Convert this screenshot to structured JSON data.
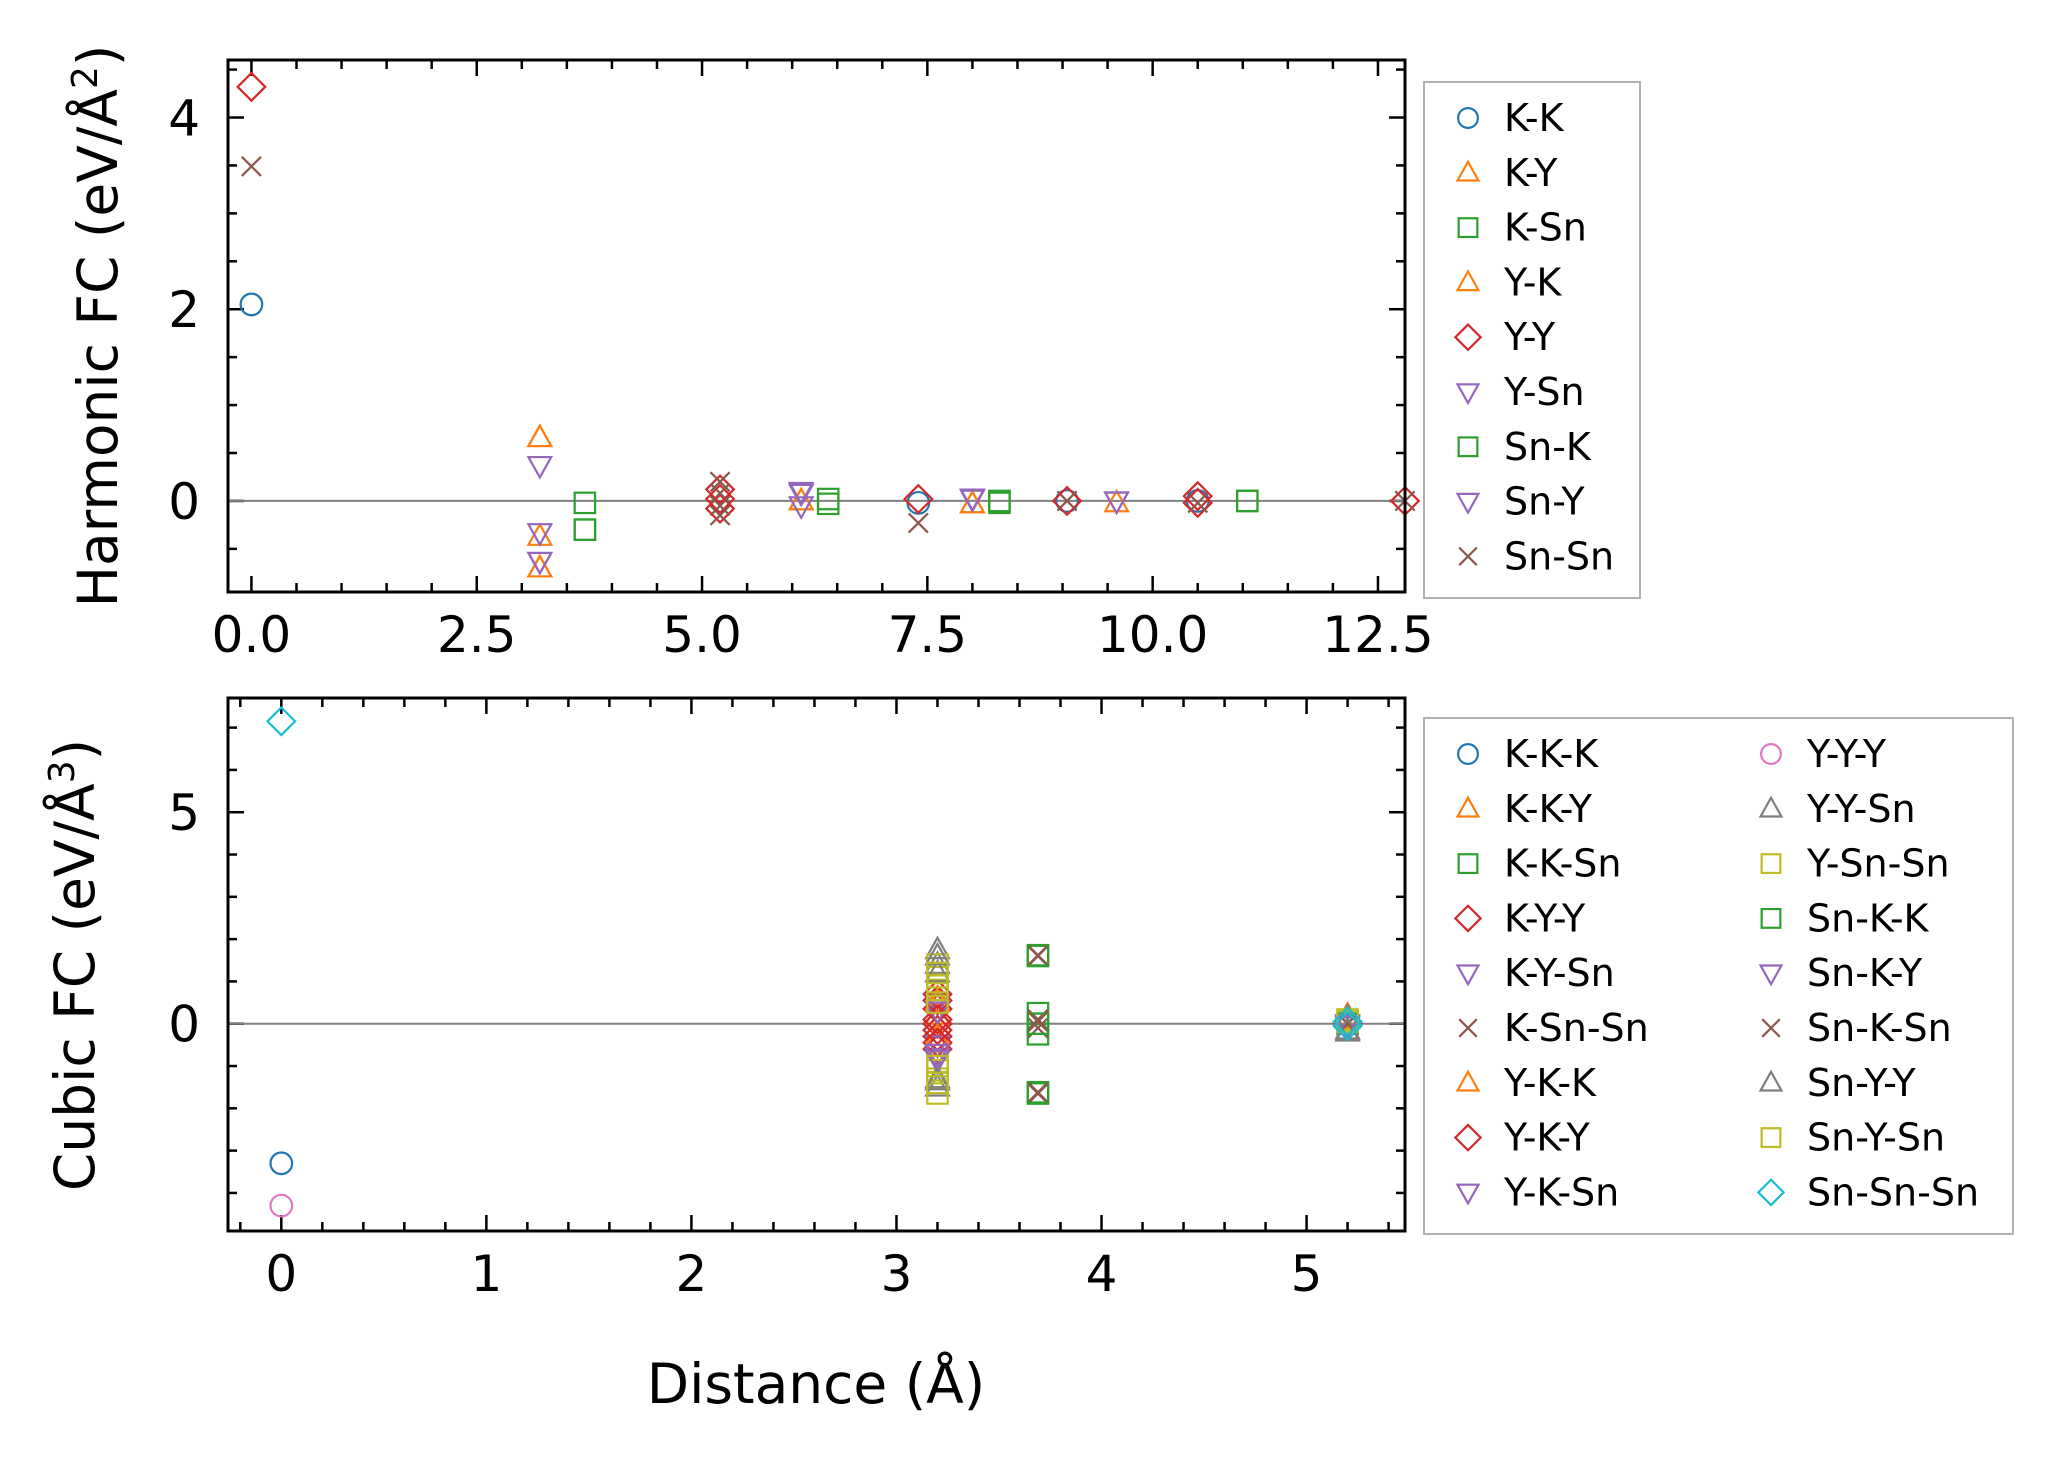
{
  "chart_data": [
    {
      "type": "scatter",
      "title": "",
      "xlabel": "",
      "ylabel": "Harmonic FC (eV/Å²)",
      "ylabel_parts": {
        "main": "Harmonic FC (eV/Å",
        "sup": "2",
        "close": ")"
      },
      "xlim": [
        -0.26,
        12.8
      ],
      "ylim": [
        -0.95,
        4.6
      ],
      "xticks": [
        0.0,
        2.5,
        5.0,
        7.5,
        10.0,
        12.5
      ],
      "xtick_labels": [
        "0.0",
        "2.5",
        "5.0",
        "7.5",
        "10.0",
        "12.5"
      ],
      "yticks": [
        0,
        2,
        4
      ],
      "ytick_labels": [
        "0",
        "2",
        "4"
      ],
      "legend_position": "right",
      "series": [
        {
          "name": "K-K",
          "marker": "circle",
          "color": "#1f77b4",
          "x": [
            0.0,
            7.4,
            9.05,
            10.5
          ],
          "y": [
            2.05,
            -0.02,
            0.0,
            0.0
          ]
        },
        {
          "name": "K-Y",
          "marker": "triangle-up",
          "color": "#ff7f0e",
          "x": [
            3.2,
            3.2,
            3.2,
            6.1,
            8.0,
            9.6
          ],
          "y": [
            0.66,
            -0.37,
            -0.7,
            0.0,
            -0.03,
            -0.02
          ]
        },
        {
          "name": "K-Sn",
          "marker": "square",
          "color": "#2ca02c",
          "x": [
            3.7,
            3.7,
            6.4,
            8.3,
            11.05
          ],
          "y": [
            -0.02,
            -0.3,
            0.02,
            0.0,
            0.0
          ]
        },
        {
          "name": "Y-K",
          "marker": "triangle-up",
          "color": "#ff7f0e",
          "x": [
            3.2,
            3.2,
            6.1,
            8.0
          ],
          "y": [
            0.66,
            -0.7,
            0.0,
            -0.03
          ]
        },
        {
          "name": "Y-Y",
          "marker": "diamond",
          "color": "#d62728",
          "x": [
            0.0,
            5.2,
            5.2,
            5.2,
            7.4,
            9.05,
            10.5,
            10.5,
            12.8
          ],
          "y": [
            4.32,
            0.12,
            0.02,
            -0.08,
            0.02,
            0.0,
            0.05,
            -0.02,
            0.0
          ]
        },
        {
          "name": "Y-Sn",
          "marker": "triangle-down",
          "color": "#9467bd",
          "x": [
            3.2,
            3.2,
            3.2,
            6.1,
            6.1,
            8.0,
            9.6
          ],
          "y": [
            0.37,
            -0.33,
            -0.63,
            0.1,
            -0.05,
            0.03,
            0.0
          ]
        },
        {
          "name": "Sn-K",
          "marker": "square",
          "color": "#2ca02c",
          "x": [
            3.7,
            6.4,
            8.3,
            11.05
          ],
          "y": [
            -0.3,
            -0.03,
            -0.02,
            0.0
          ]
        },
        {
          "name": "Sn-Y",
          "marker": "triangle-down",
          "color": "#9467bd",
          "x": [
            3.2,
            6.1,
            8.0,
            9.6
          ],
          "y": [
            -0.63,
            0.08,
            0.02,
            0.0
          ]
        },
        {
          "name": "Sn-Sn",
          "marker": "x",
          "color": "#8c564b",
          "x": [
            0.0,
            5.2,
            5.2,
            5.2,
            5.2,
            7.4,
            9.05,
            10.5,
            12.8
          ],
          "y": [
            3.49,
            0.2,
            0.08,
            -0.05,
            -0.15,
            -0.23,
            0.0,
            -0.02,
            0.0
          ]
        }
      ]
    },
    {
      "type": "scatter",
      "title": "",
      "xlabel": "Distance (Å)",
      "ylabel": "Cubic FC (eV/Å³)",
      "ylabel_parts": {
        "main": "Cubic FC (eV/Å",
        "sup": "3",
        "close": ")"
      },
      "xlim": [
        -0.26,
        5.48
      ],
      "ylim": [
        -4.9,
        7.7
      ],
      "xticks": [
        0,
        1,
        2,
        3,
        4,
        5
      ],
      "xtick_labels": [
        "0",
        "1",
        "2",
        "3",
        "4",
        "5"
      ],
      "yticks": [
        0,
        5
      ],
      "ytick_labels": [
        "0",
        "5"
      ],
      "legend_position": "right",
      "legend_columns": 2,
      "series": [
        {
          "name": "K-K-K",
          "marker": "circle",
          "color": "#1f77b4",
          "x": [
            0.0,
            5.2
          ],
          "y": [
            -3.3,
            0.0
          ]
        },
        {
          "name": "K-K-Y",
          "marker": "triangle-up",
          "color": "#ff7f0e",
          "x": [
            3.2,
            3.2,
            3.2,
            5.2
          ],
          "y": [
            0.6,
            0.2,
            -0.4,
            0.2
          ]
        },
        {
          "name": "K-K-Sn",
          "marker": "square",
          "color": "#2ca02c",
          "x": [
            3.69,
            3.69,
            3.69,
            3.69,
            3.69,
            5.2
          ],
          "y": [
            1.6,
            0.25,
            0.0,
            -0.25,
            -1.65,
            0.0
          ]
        },
        {
          "name": "K-Y-Y",
          "marker": "diamond",
          "color": "#d62728",
          "x": [
            3.2,
            3.2,
            3.2,
            3.2,
            3.2,
            5.2
          ],
          "y": [
            0.7,
            0.35,
            0.0,
            -0.3,
            -0.6,
            0.0
          ]
        },
        {
          "name": "K-Y-Sn",
          "marker": "triangle-down",
          "color": "#9467bd",
          "x": [
            3.2,
            3.2,
            3.2,
            5.2
          ],
          "y": [
            0.5,
            -0.5,
            -0.8,
            0.0
          ]
        },
        {
          "name": "K-Sn-Sn",
          "marker": "x",
          "color": "#8c564b",
          "x": [
            3.69,
            3.69,
            3.69,
            3.69,
            5.2
          ],
          "y": [
            1.6,
            0.1,
            -0.1,
            -1.65,
            0.0
          ]
        },
        {
          "name": "Y-K-K",
          "marker": "triangle-up",
          "color": "#ff7f0e",
          "x": [
            3.2,
            3.2,
            5.2
          ],
          "y": [
            0.5,
            -0.3,
            0.1
          ]
        },
        {
          "name": "Y-K-Y",
          "marker": "diamond",
          "color": "#d62728",
          "x": [
            3.2,
            3.2,
            3.2,
            3.2
          ],
          "y": [
            0.55,
            0.1,
            -0.15,
            -0.45
          ]
        },
        {
          "name": "Y-K-Sn",
          "marker": "triangle-down",
          "color": "#9467bd",
          "x": [
            3.2,
            3.2,
            5.2
          ],
          "y": [
            0.3,
            -0.7,
            0.0
          ]
        },
        {
          "name": "Y-Y-Y",
          "marker": "circle",
          "color": "#e377c2",
          "x": [
            0.0,
            5.2
          ],
          "y": [
            -4.3,
            0.0
          ]
        },
        {
          "name": "Y-Y-Sn",
          "marker": "triangle-up",
          "color": "#7f7f7f",
          "x": [
            3.2,
            3.2,
            3.2,
            3.2,
            5.2,
            5.2
          ],
          "y": [
            1.75,
            1.4,
            -1.3,
            -1.5,
            0.15,
            -0.2
          ]
        },
        {
          "name": "Y-Sn-Sn",
          "marker": "square",
          "color": "#bcbd22",
          "x": [
            3.2,
            3.2,
            3.2,
            3.2,
            3.2,
            3.2,
            3.2,
            3.2,
            5.2
          ],
          "y": [
            1.4,
            1.1,
            0.8,
            0.5,
            -0.9,
            -1.1,
            -1.3,
            -1.65,
            0.1
          ]
        },
        {
          "name": "Sn-K-K",
          "marker": "square",
          "color": "#2ca02c",
          "x": [
            3.69,
            3.69,
            3.69
          ],
          "y": [
            1.62,
            0.0,
            -1.62
          ]
        },
        {
          "name": "Sn-K-Y",
          "marker": "triangle-down",
          "color": "#9467bd",
          "x": [
            3.2,
            5.2
          ],
          "y": [
            -0.85,
            -0.05
          ]
        },
        {
          "name": "Sn-K-Sn",
          "marker": "x",
          "color": "#8c564b",
          "x": [
            3.69,
            3.69,
            3.69,
            5.2
          ],
          "y": [
            1.62,
            0.05,
            -1.62,
            0.0
          ]
        },
        {
          "name": "Sn-Y-Y",
          "marker": "triangle-up",
          "color": "#7f7f7f",
          "x": [
            3.2,
            3.2,
            3.2,
            5.2
          ],
          "y": [
            1.6,
            -1.35,
            1.2,
            -0.15
          ]
        },
        {
          "name": "Sn-Y-Sn",
          "marker": "square",
          "color": "#bcbd22",
          "x": [
            3.2,
            3.2,
            3.2,
            3.2,
            5.2
          ],
          "y": [
            1.2,
            0.9,
            -1.0,
            -1.4,
            0.05
          ]
        },
        {
          "name": "Sn-Sn-Sn",
          "marker": "diamond",
          "color": "#17becf",
          "x": [
            0.0,
            5.2,
            5.2
          ],
          "y": [
            7.15,
            0.05,
            -0.05
          ]
        }
      ]
    }
  ]
}
